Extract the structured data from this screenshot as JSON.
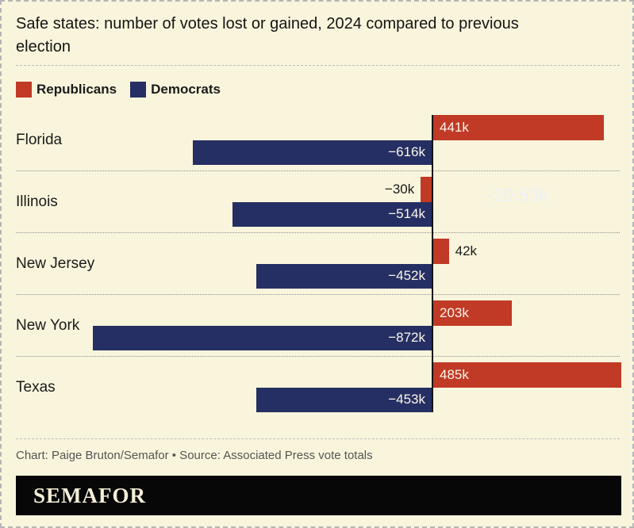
{
  "header": {
    "title": "Safe states: number of votes lost or gained, 2024 compared to previous election"
  },
  "legend": {
    "items": [
      {
        "label": "Republicans",
        "color": "#c03a26"
      },
      {
        "label": "Democrats",
        "color": "#262f63"
      }
    ]
  },
  "chart_data": {
    "type": "bar",
    "orientation": "horizontal-diverging",
    "title": "Safe states: number of votes lost or gained, 2024 compared to previous election",
    "unit": "thousands of votes",
    "categories": [
      "Florida",
      "Illinois",
      "New Jersey",
      "New York",
      "Texas"
    ],
    "series": [
      {
        "name": "Republicans",
        "color": "#c03a26",
        "values_k": [
          441,
          -30,
          42,
          203,
          485
        ],
        "labels": [
          "441k",
          "−30k",
          "42k",
          "203k",
          "485k"
        ]
      },
      {
        "name": "Democrats",
        "color": "#262f63",
        "values_k": [
          -616,
          -514,
          -452,
          -872,
          -453
        ],
        "labels": [
          "−616k",
          "−514k",
          "−452k",
          "−872k",
          "−453k"
        ]
      }
    ],
    "x_range_k": [
      -1070,
      485
    ],
    "zero_baseline": true,
    "grid": false,
    "legend_position": "top-left",
    "annotations": [
      {
        "text": "-29.53k",
        "note": "faint tooltip remnant near Illinois row"
      }
    ]
  },
  "footer": {
    "credit": "Chart: Paige Bruton/Semafor • Source: Associated Press vote totals",
    "logo": "SEMAFOR"
  },
  "colors": {
    "background": "#f9f5dc",
    "republican": "#c03a26",
    "democrat": "#262f63",
    "baseline": "#141414",
    "inside_bar_label": "#fbf7ea",
    "outside_bar_label": "#1a1a1a",
    "credit_text": "#545454",
    "ghost_text": "#edf0f7",
    "logo_bar": "#070707",
    "logo_text": "#f4eed6"
  }
}
